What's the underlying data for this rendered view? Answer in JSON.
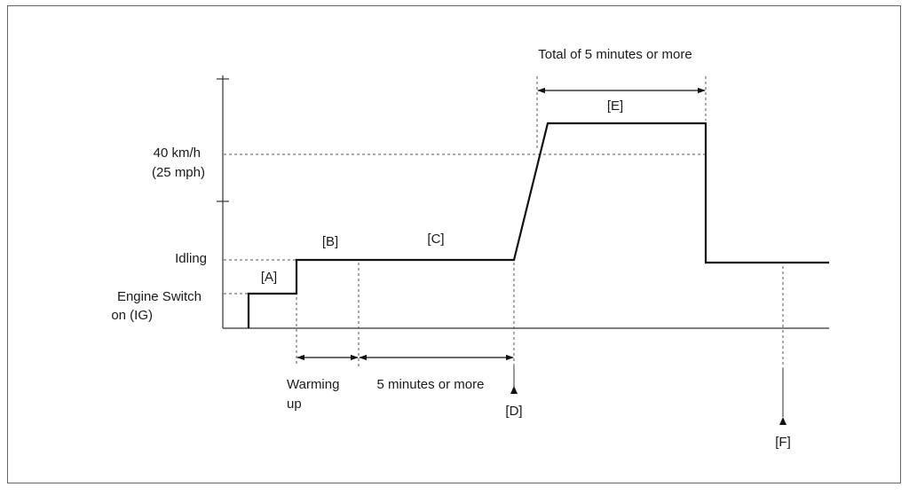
{
  "y_labels": {
    "speed_line1": "40 km/h",
    "speed_line2": "(25 mph)",
    "idling": "Idling",
    "engine_line1": "Engine Switch",
    "engine_line2": "on (IG)"
  },
  "phase_labels": {
    "a": "[A]",
    "b": "[B]",
    "c": "[C]",
    "d": "[D]",
    "e": "[E]",
    "f": "[F]"
  },
  "durations": {
    "warming_line1": "Warming",
    "warming_line2": "up",
    "five_minutes": "5 minutes or more",
    "total_five_minutes": "Total of 5 minutes or more"
  }
}
